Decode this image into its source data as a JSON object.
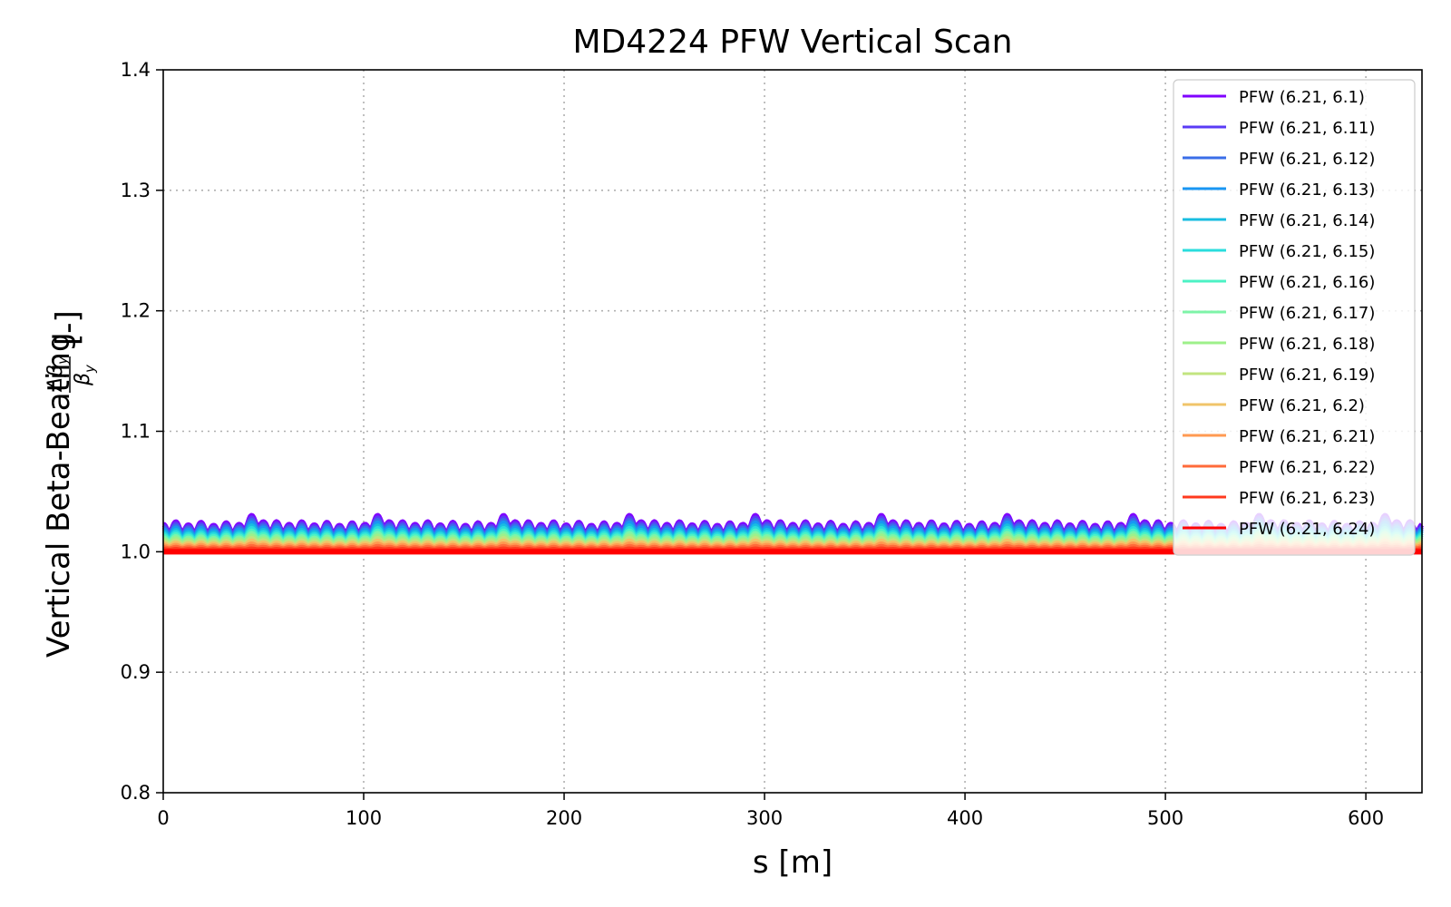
{
  "chart_data": {
    "type": "line",
    "title": "MD4224 PFW Vertical Scan",
    "xlabel": "s [m]",
    "ylabel": "Vertical Beta-Beating",
    "ylabel_math": {
      "numerator": "Δβ",
      "denominator": "β",
      "subscript": "y",
      "unit": "[-]"
    },
    "xlim": [
      0,
      628
    ],
    "ylim": [
      0.8,
      1.4
    ],
    "xticks": [
      0,
      100,
      200,
      300,
      400,
      500,
      600
    ],
    "yticks": [
      0.8,
      0.9,
      1.0,
      1.1,
      1.2,
      1.3,
      1.4
    ],
    "ytick_labels": [
      "0.8",
      "0.9",
      "1.0",
      "1.1",
      "1.2",
      "1.3",
      "1.4"
    ],
    "grid": true,
    "legend": "top-right",
    "wave": {
      "baseline": 1.0,
      "period_m": 12.566,
      "superperiod_m": 62.83,
      "base_amplitude": 0.0185,
      "ripple_amplitude": 0.004,
      "peak_amplitude": 0.006
    },
    "series": [
      {
        "name": "PFW (6.21, 6.1)",
        "color": "#8000ff",
        "scale": 1.0
      },
      {
        "name": "PFW (6.21, 6.11)",
        "color": "#5a3bf6",
        "scale": 0.93
      },
      {
        "name": "PFW (6.21, 6.12)",
        "color": "#3a6ee8",
        "scale": 0.86
      },
      {
        "name": "PFW (6.21, 6.13)",
        "color": "#1996f3",
        "scale": 0.79
      },
      {
        "name": "PFW (6.21, 6.14)",
        "color": "#18bde0",
        "scale": 0.71
      },
      {
        "name": "PFW (6.21, 6.15)",
        "color": "#2adddd",
        "scale": 0.64
      },
      {
        "name": "PFW (6.21, 6.16)",
        "color": "#4cf2c4",
        "scale": 0.57
      },
      {
        "name": "PFW (6.21, 6.17)",
        "color": "#7ef4a8",
        "scale": 0.5
      },
      {
        "name": "PFW (6.21, 6.18)",
        "color": "#9ef08a",
        "scale": 0.43
      },
      {
        "name": "PFW (6.21, 6.19)",
        "color": "#c2e480",
        "scale": 0.36
      },
      {
        "name": "PFW (6.21, 6.2)",
        "color": "#f0c46a",
        "scale": 0.29
      },
      {
        "name": "PFW (6.21, 6.21)",
        "color": "#ff9a52",
        "scale": 0.21
      },
      {
        "name": "PFW (6.21, 6.22)",
        "color": "#ff6a3a",
        "scale": 0.14
      },
      {
        "name": "PFW (6.21, 6.23)",
        "color": "#ff3a1e",
        "scale": 0.07
      },
      {
        "name": "PFW (6.21, 6.24)",
        "color": "#ff0000",
        "scale": 0.0
      }
    ]
  }
}
